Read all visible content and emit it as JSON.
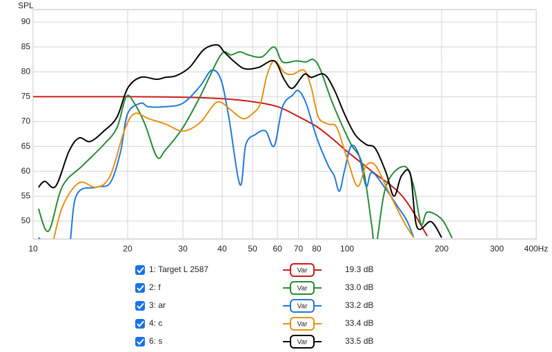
{
  "chart_data": {
    "type": "line",
    "y_label": "SPL",
    "x_scale": "log",
    "grid": true,
    "button": "Var",
    "xlim": [
      10,
      400
    ],
    "ylim": [
      46.4,
      92.5
    ],
    "xticks": [
      10,
      20,
      30,
      40,
      50,
      60,
      70,
      80,
      100,
      200,
      300,
      {
        "value": 400,
        "label": "400Hz"
      }
    ],
    "yticks": [
      50,
      55,
      60,
      65,
      70,
      75,
      80,
      85,
      90
    ],
    "series": [
      {
        "name": "1: Target L 2587",
        "color": "#cc1a1a",
        "level": "19.3 dB",
        "x": [
          10,
          20,
          30,
          40,
          50,
          60,
          70,
          80,
          90,
          100,
          120,
          150,
          180
        ],
        "values": [
          75,
          75,
          74.9,
          74.6,
          74,
          73,
          71,
          69,
          66.5,
          64,
          60,
          55,
          47
        ]
      },
      {
        "name": "2: f",
        "color": "#228b33",
        "level": "33.0 dB",
        "x": [
          10.4,
          11.2,
          12.4,
          14.4,
          16.8,
          18.5,
          19.8,
          21,
          22.7,
          24.8,
          26.4,
          30,
          34,
          39.6,
          42.7,
          45.6,
          48.5,
          53.5,
          58.6,
          62.3,
          69,
          74,
          78,
          82,
          89,
          96,
          103,
          112,
          120,
          123,
          133,
          152,
          163,
          172,
          180,
          200,
          216
        ],
        "values": [
          52.5,
          48,
          57,
          61.2,
          65.4,
          68.8,
          75,
          73.7,
          69.5,
          62.9,
          64.3,
          68.8,
          75,
          83.4,
          83.4,
          84,
          83.4,
          83,
          85,
          82,
          82.2,
          82,
          82.5,
          80.6,
          74.4,
          69.5,
          65.4,
          61.2,
          48.8,
          44,
          57,
          61,
          57,
          49.4,
          51.8,
          50.4,
          46.6
        ]
      },
      {
        "name": "3: ar",
        "color": "#1f78d8",
        "level": "33.2 dB",
        "x": [
          10.4,
          12.7,
          13.7,
          15.9,
          17.6,
          19,
          20,
          22,
          23.3,
          26.4,
          30,
          34,
          37,
          39.6,
          42,
          45.6,
          47.6,
          51,
          55,
          58.6,
          62.3,
          67,
          70,
          74,
          80,
          87,
          91,
          94.5,
          98,
          103,
          109,
          115,
          120,
          133,
          145,
          155,
          163
        ],
        "values": [
          46.7,
          42,
          55,
          56.8,
          57.7,
          64,
          71.6,
          73.7,
          73,
          73,
          73.7,
          77.1,
          80.3,
          78.5,
          70.9,
          57.3,
          65.4,
          67.4,
          68.1,
          65.1,
          73,
          75.3,
          76.2,
          73.7,
          66.8,
          61.2,
          59.1,
          56,
          60,
          65.1,
          63.3,
          57,
          59.8,
          56.4,
          52.9,
          50.1,
          46.7
        ]
      },
      {
        "name": "4: c",
        "color": "#e8900f",
        "level": "33.4 dB",
        "x": [
          11.5,
          12.4,
          14,
          15.9,
          17.6,
          19.5,
          21,
          23.3,
          26.4,
          30,
          34,
          37.6,
          39.6,
          42.7,
          46.6,
          50,
          53,
          55.5,
          58.6,
          63,
          67,
          73,
          77,
          81,
          87,
          92.7,
          100,
          108,
          115,
          123,
          133,
          145,
          155,
          163
        ],
        "values": [
          45,
          52.9,
          57.7,
          56.8,
          59.1,
          68.1,
          71.6,
          70.6,
          69.5,
          68.1,
          69.8,
          73.4,
          73.9,
          72.3,
          70.6,
          71.6,
          73.7,
          79.2,
          82.2,
          79.9,
          79.5,
          80.3,
          76.7,
          70.9,
          69.5,
          68.8,
          62.6,
          57,
          61.2,
          61.2,
          57,
          52.2,
          48.8,
          46.7
        ]
      },
      {
        "name": "6: s",
        "color": "#000000",
        "level": "33.5 dB",
        "x": [
          10.4,
          10.9,
          11.8,
          13,
          14,
          15.2,
          16.8,
          18.5,
          20,
          22,
          24.7,
          26.4,
          28.5,
          31.5,
          35,
          38.6,
          40.6,
          43.8,
          47.3,
          52.3,
          58.6,
          63,
          67,
          73,
          77,
          84.5,
          91,
          98,
          106,
          115,
          123,
          133,
          141,
          149,
          159,
          167,
          185,
          200
        ],
        "values": [
          56.8,
          58,
          57,
          64,
          66.7,
          66,
          68.1,
          70.9,
          76.7,
          78.9,
          78.5,
          78.9,
          79.2,
          80.9,
          84.5,
          85.4,
          84,
          82,
          80.6,
          80.9,
          82.2,
          78.5,
          76.7,
          79.5,
          78.9,
          79.5,
          76.4,
          71.6,
          67.4,
          65.4,
          64.6,
          59.8,
          55,
          59.1,
          59.5,
          48.8,
          49.9,
          46.7
        ]
      }
    ]
  }
}
